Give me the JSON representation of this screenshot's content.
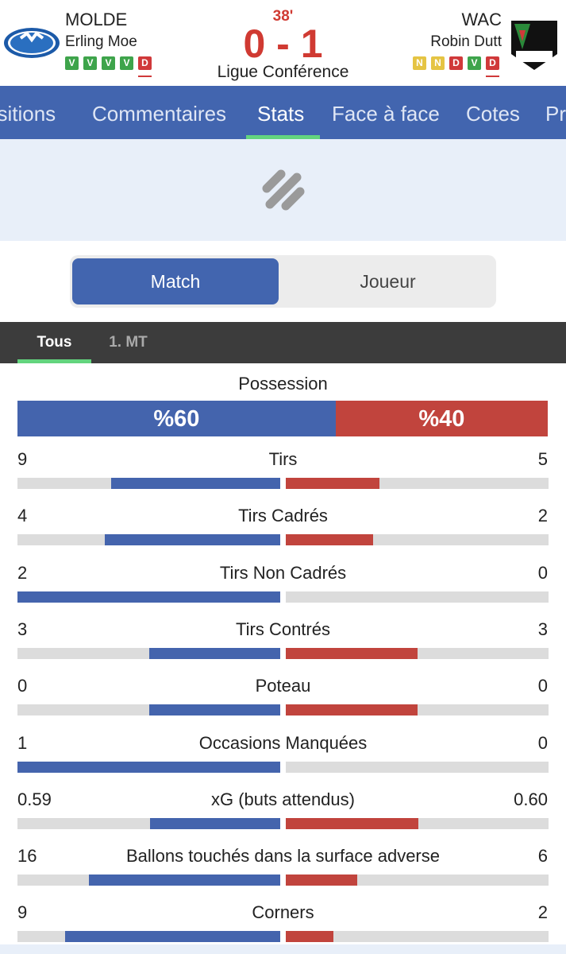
{
  "header": {
    "minute": "38'",
    "score": "0 - 1",
    "competition": "Ligue Conférence",
    "home": {
      "name": "MOLDE",
      "coach": "Erling Moe",
      "form": [
        "V",
        "V",
        "V",
        "V",
        "D"
      ]
    },
    "away": {
      "name": "WAC",
      "coach": "Robin Dutt",
      "form": [
        "N",
        "N",
        "D",
        "V",
        "D"
      ]
    }
  },
  "nav": {
    "tabs": [
      "ositions",
      "Commentaires",
      "Stats",
      "Face à face",
      "Cotes",
      "Pr"
    ],
    "active": 2
  },
  "toggle": {
    "options": [
      "Match",
      "Joueur"
    ],
    "active": 0
  },
  "periods": {
    "tabs": [
      "Tous",
      "1. MT"
    ],
    "active": 0
  },
  "possession": {
    "label": "Possession",
    "values": [
      60,
      40
    ],
    "value_labels": [
      "%60",
      "%40"
    ]
  },
  "stats": [
    {
      "label": "Tirs",
      "values": [
        9,
        5
      ]
    },
    {
      "label": "Tirs Cadrés",
      "values": [
        4,
        2
      ]
    },
    {
      "label": "Tirs Non Cadrés",
      "values": [
        2,
        0
      ]
    },
    {
      "label": "Tirs Contrés",
      "values": [
        3,
        3
      ]
    },
    {
      "label": "Poteau",
      "values": [
        0,
        0
      ]
    },
    {
      "label": "Occasions Manquées",
      "values": [
        1,
        0
      ]
    },
    {
      "label": "xG (buts attendus)",
      "values": [
        0.59,
        0.6
      ],
      "value_labels": [
        "0.59",
        "0.60"
      ]
    },
    {
      "label": "Ballons touchés dans la surface adverse",
      "values": [
        16,
        6
      ]
    },
    {
      "label": "Corners",
      "values": [
        9,
        2
      ]
    }
  ]
}
